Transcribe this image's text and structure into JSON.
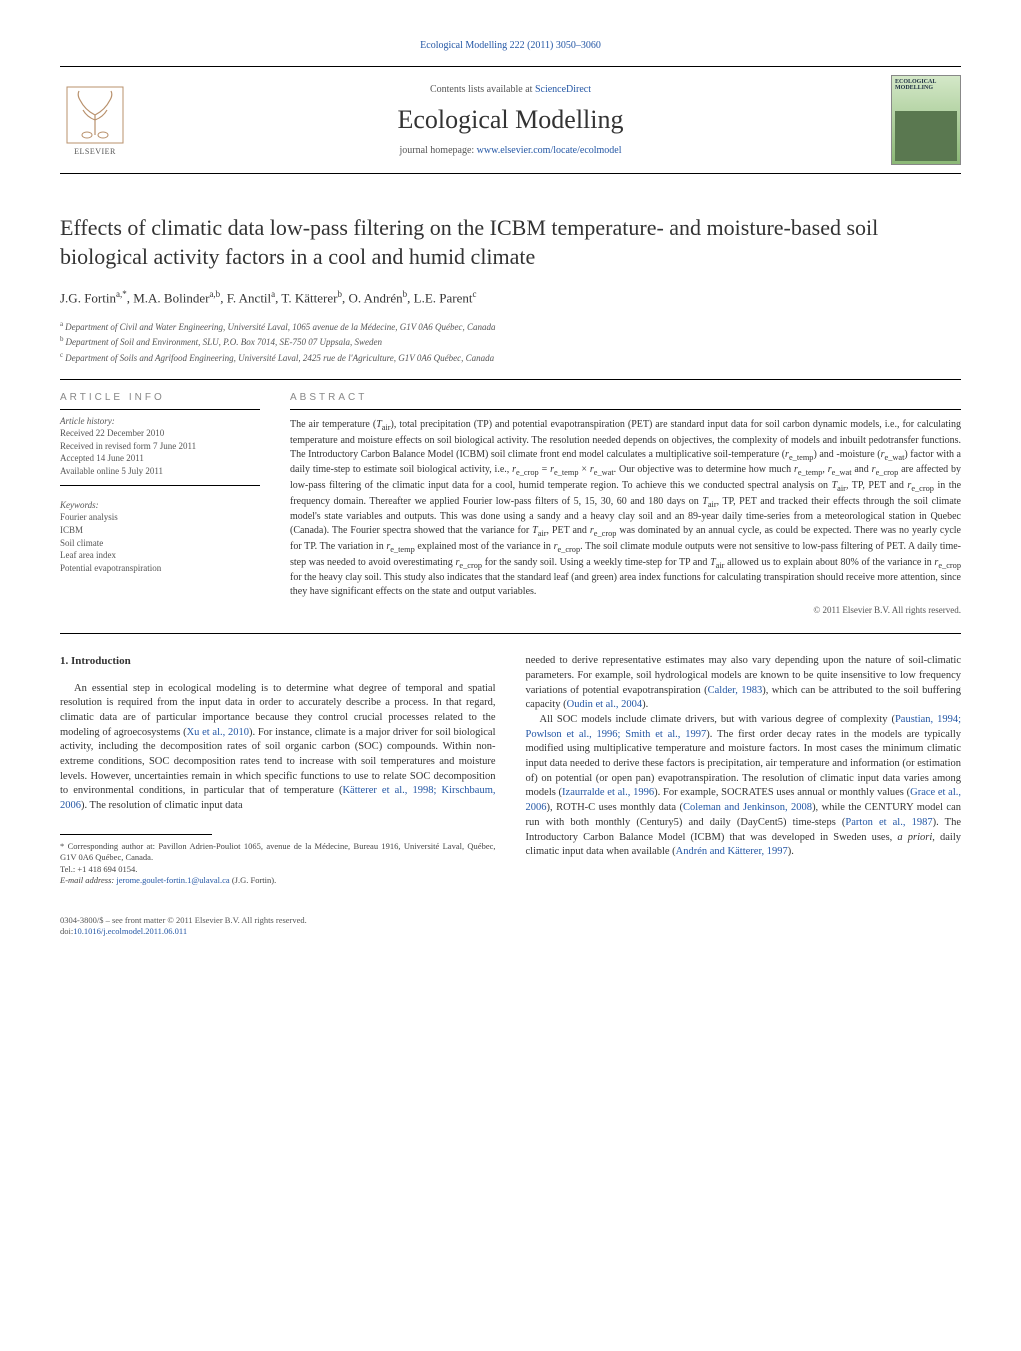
{
  "header": {
    "citation": "Ecological Modelling 222 (2011) 3050–3060",
    "contents_prefix": "Contents lists available at ",
    "contents_link": "ScienceDirect",
    "journal": "Ecological Modelling",
    "homepage_prefix": "journal homepage: ",
    "homepage_url": "www.elsevier.com/locate/ecolmodel",
    "publisher_wordmark": "ELSEVIER",
    "cover_label": "ECOLOGICAL MODELLING"
  },
  "title": "Effects of climatic data low-pass filtering on the ICBM temperature- and moisture-based soil biological activity factors in a cool and humid climate",
  "authors_html": "J.G. Fortin<span class='sup'>a,*</span>, M.A. Bolinder<span class='sup'>a,b</span>, F. Anctil<span class='sup'>a</span>, T. Kätterer<span class='sup'>b</span>, O. Andrén<span class='sup'>b</span>, L.E. Parent<span class='sup'>c</span>",
  "affiliations": [
    {
      "sup": "a",
      "text": "Department of Civil and Water Engineering, Université Laval, 1065 avenue de la Médecine, G1V 0A6 Québec, Canada"
    },
    {
      "sup": "b",
      "text": "Department of Soil and Environment, SLU, P.O. Box 7014, SE-750 07 Uppsala, Sweden"
    },
    {
      "sup": "c",
      "text": "Department of Soils and Agrifood Engineering, Université Laval, 2425 rue de l'Agriculture, G1V 0A6 Québec, Canada"
    }
  ],
  "article_info": {
    "heading": "ARTICLE INFO",
    "history_label": "Article history:",
    "history": [
      "Received 22 December 2010",
      "Received in revised form 7 June 2011",
      "Accepted 14 June 2011",
      "Available online 5 July 2011"
    ],
    "keywords_label": "Keywords:",
    "keywords": [
      "Fourier analysis",
      "ICBM",
      "Soil climate",
      "Leaf area index",
      "Potential evapotranspiration"
    ]
  },
  "abstract": {
    "heading": "ABSTRACT",
    "text_html": "The air temperature (<i>T</i><sub>air</sub>), total precipitation (TP) and potential evapotranspiration (PET) are standard input data for soil carbon dynamic models, i.e., for calculating temperature and moisture effects on soil biological activity. The resolution needed depends on objectives, the complexity of models and inbuilt pedotransfer functions. The Introductory Carbon Balance Model (ICBM) soil climate front end model calculates a multiplicative soil-temperature (<i>r</i><sub>e_temp</sub>) and -moisture (<i>r</i><sub>e_wat</sub>) factor with a daily time-step to estimate soil biological activity, i.e., <i>r</i><sub>e_crop</sub> = <i>r</i><sub>e_temp</sub> × <i>r</i><sub>e_wat</sub>. Our objective was to determine how much <i>r</i><sub>e_temp</sub>, <i>r</i><sub>e_wat</sub> and <i>r</i><sub>e_crop</sub> are affected by low-pass filtering of the climatic input data for a cool, humid temperate region. To achieve this we conducted spectral analysis on <i>T</i><sub>air</sub>, TP, PET and <i>r</i><sub>e_crop</sub> in the frequency domain. Thereafter we applied Fourier low-pass filters of 5, 15, 30, 60 and 180 days on <i>T</i><sub>air</sub>, TP, PET and tracked their effects through the soil climate model's state variables and outputs. This was done using a sandy and a heavy clay soil and an 89-year daily time-series from a meteorological station in Quebec (Canada). The Fourier spectra showed that the variance for <i>T</i><sub>air</sub>, PET and <i>r</i><sub>e_crop</sub> was dominated by an annual cycle, as could be expected. There was no yearly cycle for TP. The variation in <i>r</i><sub>e_temp</sub> explained most of the variance in <i>r</i><sub>e_crop</sub>. The soil climate module outputs were not sensitive to low-pass filtering of PET. A daily time-step was needed to avoid overestimating <i>r</i><sub>e_crop</sub> for the sandy soil. Using a weekly time-step for TP and <i>T</i><sub>air</sub> allowed us to explain about 80% of the variance in <i>r</i><sub>e_crop</sub> for the heavy clay soil. This study also indicates that the standard leaf (and green) area index functions for calculating transpiration should receive more attention, since they have significant effects on the state and output variables.",
    "copyright": "© 2011 Elsevier B.V. All rights reserved."
  },
  "intro": {
    "heading": "1. Introduction",
    "col1_html": "An essential step in ecological modeling is to determine what degree of temporal and spatial resolution is required from the input data in order to accurately describe a process. In that regard, climatic data are of particular importance because they control crucial processes related to the modeling of agroecosystems (<a class='ref' href='#'>Xu et al., 2010</a>). For instance, climate is a major driver for soil biological activity, including the decomposition rates of soil organic carbon (SOC) compounds. Within non-extreme conditions, SOC decomposition rates tend to increase with soil temperatures and moisture levels. However, uncertainties remain in which specific functions to use to relate SOC decomposition to environmental conditions, in particular that of temperature (<a class='ref' href='#'>Kätterer et al., 1998; Kirschbaum, 2006</a>). The resolution of climatic input data",
    "col2_html": "needed to derive representative estimates may also vary depending upon the nature of soil-climatic parameters. For example, soil hydrological models are known to be quite insensitive to low frequency variations of potential evapotranspiration (<a class='ref' href='#'>Calder, 1983</a>), which can be attributed to the soil buffering capacity (<a class='ref' href='#'>Oudin et al., 2004</a>).",
    "col2b_html": "All SOC models include climate drivers, but with various degree of complexity (<a class='ref' href='#'>Paustian, 1994; Powlson et al., 1996; Smith et al., 1997</a>). The first order decay rates in the models are typically modified using multiplicative temperature and moisture factors. In most cases the minimum climatic input data needed to derive these factors is precipitation, air temperature and information (or estimation of) on potential (or open pan) evapotranspiration. The resolution of climatic input data varies among models (<a class='ref' href='#'>Izaurralde et al., 1996</a>). For example, SOCRATES uses annual or monthly values (<a class='ref' href='#'>Grace et al., 2006</a>), ROTH-C uses monthly data (<a class='ref' href='#'>Coleman and Jenkinson, 2008</a>), while the CENTURY model can run with both monthly (Century5) and daily (DayCent5) time-steps (<a class='ref' href='#'>Parton et al., 1987</a>). The Introductory Carbon Balance Model (ICBM) that was developed in Sweden uses, <i>a priori</i>, daily climatic input data when available (<a class='ref' href='#'>Andrén and Kätterer, 1997</a>)."
  },
  "footnote": {
    "corr_label": "* Corresponding author at: Pavillon Adrien-Pouliot 1065, avenue de la Médecine, Bureau 1916, Université Laval, Québec, G1V 0A6 Québec, Canada.",
    "tel": "Tel.: +1 418 694 0154.",
    "email_label": "E-mail address: ",
    "email": "jerome.goulet-fortin.1@ulaval.ca",
    "email_suffix": " (J.G. Fortin)."
  },
  "footer": {
    "line1": "0304-3800/$ – see front matter © 2011 Elsevier B.V. All rights reserved.",
    "doi_prefix": "doi:",
    "doi": "10.1016/j.ecolmodel.2011.06.011"
  },
  "colors": {
    "link": "#2457a5",
    "text": "#333333",
    "muted": "#555555",
    "rule": "#000000"
  }
}
